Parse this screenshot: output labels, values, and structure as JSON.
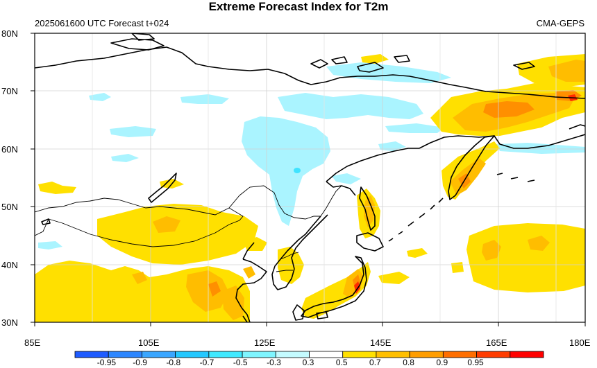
{
  "title": "Extreme Forecast Index for T2m",
  "subtitle_left": "2025061600 UTC Forecast t+024",
  "subtitle_right": "CMA-GEPS",
  "map": {
    "lon_range": [
      85,
      180
    ],
    "lat_range": [
      30,
      80
    ],
    "lat_ticks": [
      "30N",
      "40N",
      "50N",
      "60N",
      "70N",
      "80N"
    ],
    "lon_ticks": [
      "85E",
      "105E",
      "125E",
      "145E",
      "165E",
      "180E"
    ],
    "grid": true
  },
  "colorbar": {
    "labels": [
      "-0.95",
      "-0.9",
      "-0.8",
      "-0.7",
      "-0.5",
      "-0.3",
      "0.3",
      "0.5",
      "0.7",
      "0.8",
      "0.9",
      "0.95"
    ],
    "colors": [
      "#1e5bff",
      "#2c86ff",
      "#3aa6ff",
      "#24c8ff",
      "#3fe9ff",
      "#7ff5ff",
      "#c4fbff",
      "#ffffff",
      "#ffe000",
      "#ffbf00",
      "#ff9d00",
      "#ff6e00",
      "#ff3c00",
      "#ff0000"
    ]
  },
  "colors": {
    "cold_light": "#aaf4ff",
    "cold_mid": "#3fe3ff",
    "warm_light": "#ffe000",
    "warm_mid": "#ffbd00",
    "warm_high": "#ff8f00",
    "warm_extreme": "#ff2a00"
  }
}
